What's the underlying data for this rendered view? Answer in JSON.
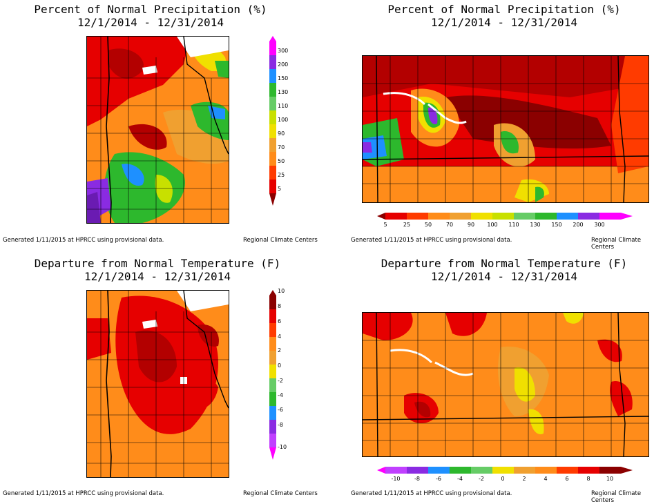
{
  "panels": [
    {
      "title_line1": "Percent of Normal Precipitation (%)",
      "title_line2": "12/1/2014 - 12/31/2014",
      "footer_left": "Generated 1/11/2015 at HPRCC using provisional data.",
      "footer_right": "Regional Climate Centers",
      "legend_orientation": "vertical",
      "legend_labels": [
        "300",
        "200",
        "150",
        "130",
        "110",
        "100",
        "90",
        "70",
        "50",
        "25",
        "5"
      ]
    },
    {
      "title_line1": "Percent of Normal Precipitation (%)",
      "title_line2": "12/1/2014 - 12/31/2014",
      "footer_left": "Generated 1/11/2015 at HPRCC using provisional data.",
      "footer_right": "Regional Climate Centers",
      "legend_orientation": "horizontal",
      "legend_labels": [
        "5",
        "25",
        "50",
        "70",
        "90",
        "100",
        "110",
        "130",
        "150",
        "200",
        "300"
      ]
    },
    {
      "title_line1": "Departure from Normal Temperature (F)",
      "title_line2": "12/1/2014 - 12/31/2014",
      "footer_left": "Generated 1/11/2015 at HPRCC using provisional data.",
      "footer_right": "Regional Climate Centers",
      "legend_orientation": "vertical",
      "legend_labels": [
        "10",
        "8",
        "6",
        "4",
        "2",
        "0",
        "-2",
        "-4",
        "-6",
        "-8",
        "-10"
      ]
    },
    {
      "title_line1": "Departure from Normal Temperature (F)",
      "title_line2": "12/1/2014 - 12/31/2014",
      "footer_left": "Generated 1/11/2015 at HPRCC using provisional data.",
      "footer_right": "Regional Climate Centers",
      "legend_orientation": "horizontal",
      "legend_labels": [
        "-10",
        "-8",
        "-6",
        "-4",
        "-2",
        "0",
        "2",
        "4",
        "6",
        "8",
        "10"
      ]
    }
  ],
  "colors": {
    "precip_scale": [
      "#8b0000",
      "#e60000",
      "#ff3b00",
      "#ff8c1a",
      "#f0a030",
      "#f0e000",
      "#c8e000",
      "#2db82d",
      "#1e90ff",
      "#8a2be2",
      "#ff00ff"
    ],
    "temp_scale": [
      "#ff00ff",
      "#8a2be2",
      "#1e90ff",
      "#2db82d",
      "#66cc66",
      "#f0e000",
      "#f0a030",
      "#ff8c1a",
      "#ff3b00",
      "#e60000",
      "#8b0000"
    ]
  }
}
